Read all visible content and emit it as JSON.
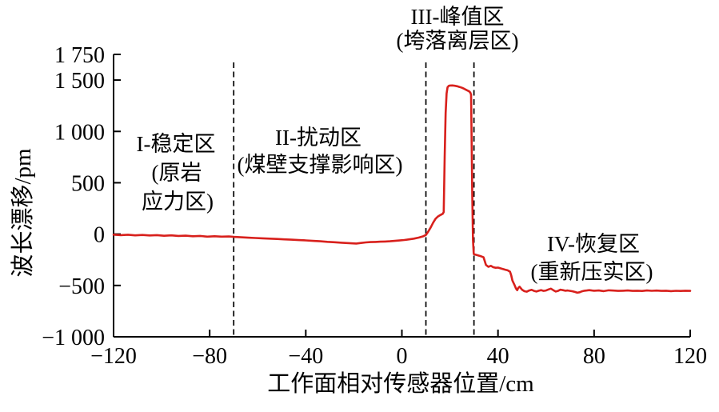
{
  "chart_data": {
    "type": "line",
    "xlabel": "工作面相对传感器位置/cm",
    "ylabel": "波长漂移/pm",
    "xlim": [
      -120,
      120
    ],
    "ylim": [
      -1000,
      1750
    ],
    "grid": false,
    "legend": "none",
    "line_color": "#d8201c",
    "axis_color": "#000000",
    "x_ticks": [
      {
        "value": -120,
        "label": "−120"
      },
      {
        "value": -80,
        "label": "−80"
      },
      {
        "value": -40,
        "label": "−40"
      },
      {
        "value": 0,
        "label": "0"
      },
      {
        "value": 40,
        "label": "40"
      },
      {
        "value": 80,
        "label": "80"
      },
      {
        "value": 120,
        "label": "120"
      }
    ],
    "y_ticks": [
      {
        "value": 1750,
        "label": "1 750"
      },
      {
        "value": 1500,
        "label": "1 500"
      },
      {
        "value": 1000,
        "label": "1 000"
      },
      {
        "value": 500,
        "label": "500"
      },
      {
        "value": 0,
        "label": "0"
      },
      {
        "value": -500,
        "label": "−500"
      },
      {
        "value": -1000,
        "label": "−1 000"
      }
    ],
    "region_boundaries_x": [
      -70,
      10,
      30
    ],
    "regions": [
      {
        "id": "I",
        "lines": [
          "I-稳定区",
          "(原岩",
          "应力区)"
        ]
      },
      {
        "id": "II",
        "lines": [
          "II-扰动区",
          "(煤壁支撑影响区)"
        ]
      },
      {
        "id": "III",
        "lines": [
          "III-峰值区",
          "(垮落离层区)"
        ]
      },
      {
        "id": "IV",
        "lines": [
          "IV-恢复区",
          "(重新压实区)"
        ]
      }
    ],
    "series": [
      {
        "name": "波长漂移",
        "points": [
          [
            -120,
            -5
          ],
          [
            -117,
            -10
          ],
          [
            -114,
            -6
          ],
          [
            -111,
            -12
          ],
          [
            -108,
            -8
          ],
          [
            -105,
            -13
          ],
          [
            -102,
            -10
          ],
          [
            -99,
            -16
          ],
          [
            -96,
            -12
          ],
          [
            -93,
            -18
          ],
          [
            -90,
            -15
          ],
          [
            -87,
            -21
          ],
          [
            -84,
            -18
          ],
          [
            -81,
            -25
          ],
          [
            -78,
            -21
          ],
          [
            -75,
            -25
          ],
          [
            -72,
            -23
          ],
          [
            -70,
            -27
          ],
          [
            -67,
            -31
          ],
          [
            -64,
            -35
          ],
          [
            -61,
            -38
          ],
          [
            -58,
            -41
          ],
          [
            -55,
            -44
          ],
          [
            -52,
            -47
          ],
          [
            -49,
            -51
          ],
          [
            -46,
            -54
          ],
          [
            -43,
            -58
          ],
          [
            -40,
            -61
          ],
          [
            -37,
            -66
          ],
          [
            -34,
            -70
          ],
          [
            -31,
            -75
          ],
          [
            -28,
            -79
          ],
          [
            -25,
            -84
          ],
          [
            -22,
            -88
          ],
          [
            -19,
            -92
          ],
          [
            -17,
            -86
          ],
          [
            -15,
            -81
          ],
          [
            -13,
            -78
          ],
          [
            -11,
            -76
          ],
          [
            -9,
            -74
          ],
          [
            -7,
            -72
          ],
          [
            -5,
            -70
          ],
          [
            -3,
            -66
          ],
          [
            -1,
            -62
          ],
          [
            1,
            -57
          ],
          [
            3,
            -51
          ],
          [
            5,
            -44
          ],
          [
            7,
            -34
          ],
          [
            9,
            -20
          ],
          [
            10,
            -8
          ],
          [
            11,
            25
          ],
          [
            12,
            65
          ],
          [
            13,
            112
          ],
          [
            14,
            150
          ],
          [
            15,
            172
          ],
          [
            16,
            186
          ],
          [
            17,
            198
          ],
          [
            17.4,
            215
          ],
          [
            17.8,
            750
          ],
          [
            18.2,
            1180
          ],
          [
            18.6,
            1370
          ],
          [
            19,
            1430
          ],
          [
            19.5,
            1443
          ],
          [
            20,
            1447
          ],
          [
            21,
            1448
          ],
          [
            22,
            1445
          ],
          [
            23,
            1440
          ],
          [
            24,
            1433
          ],
          [
            25,
            1425
          ],
          [
            26,
            1414
          ],
          [
            27,
            1402
          ],
          [
            28,
            1390
          ],
          [
            28.5,
            1378
          ],
          [
            28.8,
            1358
          ],
          [
            29,
            980
          ],
          [
            29.3,
            380
          ],
          [
            29.6,
            -60
          ],
          [
            29.9,
            -188
          ],
          [
            30,
            -196
          ],
          [
            31,
            -202
          ],
          [
            32,
            -209
          ],
          [
            33,
            -216
          ],
          [
            34,
            -226
          ],
          [
            34.5,
            -262
          ],
          [
            35,
            -300
          ],
          [
            36,
            -318
          ],
          [
            37,
            -309
          ],
          [
            38,
            -322
          ],
          [
            39,
            -328
          ],
          [
            40,
            -326
          ],
          [
            41,
            -333
          ],
          [
            42,
            -339
          ],
          [
            43,
            -346
          ],
          [
            44,
            -353
          ],
          [
            45,
            -366
          ],
          [
            45.5,
            -402
          ],
          [
            46,
            -452
          ],
          [
            47,
            -502
          ],
          [
            47.5,
            -530
          ],
          [
            48,
            -546
          ],
          [
            48.5,
            -522
          ],
          [
            49,
            -512
          ],
          [
            50,
            -541
          ],
          [
            51,
            -556
          ],
          [
            52,
            -561
          ],
          [
            53,
            -549
          ],
          [
            54,
            -543
          ],
          [
            55,
            -553
          ],
          [
            56,
            -559
          ],
          [
            57,
            -551
          ],
          [
            58,
            -546
          ],
          [
            59,
            -553
          ],
          [
            60,
            -549
          ],
          [
            61,
            -539
          ],
          [
            62,
            -531
          ],
          [
            63,
            -546
          ],
          [
            64,
            -559
          ],
          [
            65,
            -553
          ],
          [
            66,
            -541
          ],
          [
            67,
            -546
          ],
          [
            68,
            -551
          ],
          [
            69,
            -549
          ],
          [
            70,
            -553
          ],
          [
            71,
            -557
          ],
          [
            72,
            -563
          ],
          [
            73,
            -571
          ],
          [
            74,
            -566
          ],
          [
            75,
            -557
          ],
          [
            76,
            -551
          ],
          [
            77,
            -549
          ],
          [
            78,
            -546
          ],
          [
            79,
            -549
          ],
          [
            80,
            -551
          ],
          [
            82,
            -549
          ],
          [
            84,
            -555
          ],
          [
            86,
            -547
          ],
          [
            88,
            -550
          ],
          [
            90,
            -553
          ],
          [
            92,
            -551
          ],
          [
            94,
            -549
          ],
          [
            96,
            -553
          ],
          [
            98,
            -551
          ],
          [
            100,
            -554
          ],
          [
            102,
            -549
          ],
          [
            104,
            -552
          ],
          [
            106,
            -550
          ],
          [
            108,
            -553
          ],
          [
            110,
            -551
          ],
          [
            112,
            -555
          ],
          [
            114,
            -552
          ],
          [
            116,
            -554
          ],
          [
            118,
            -551
          ],
          [
            120,
            -553
          ]
        ]
      }
    ]
  }
}
